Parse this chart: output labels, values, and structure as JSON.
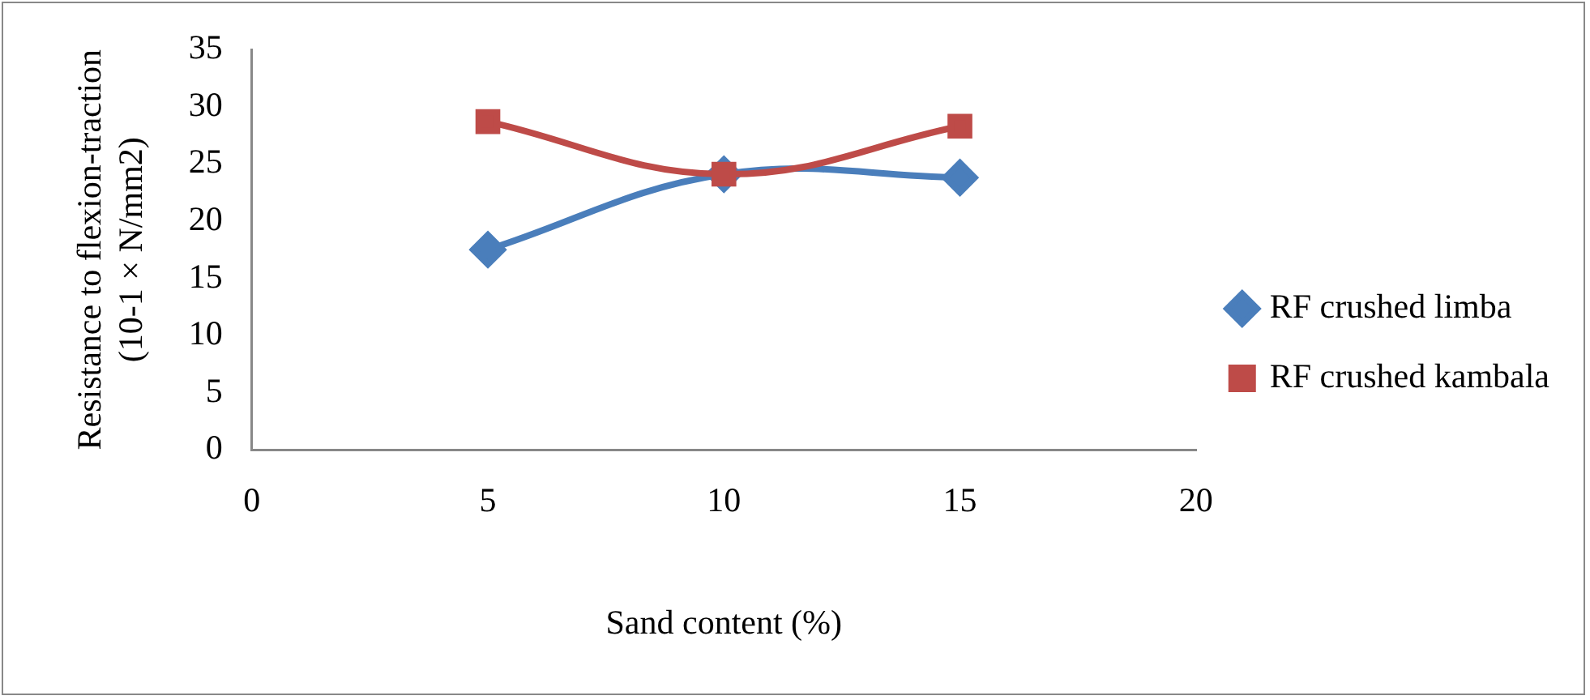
{
  "chart_data": {
    "type": "line",
    "xlabel": "Sand content (%)",
    "ylabel": "Resistance to flexion-traction (10-1 × N/mm2)",
    "x": [
      5,
      10,
      15
    ],
    "series": [
      {
        "name": "RF crushed limba",
        "color": "#4a7ebb",
        "marker": "diamond",
        "values": [
          17.5,
          24.1,
          23.8
        ]
      },
      {
        "name": "RF crushed kambala",
        "color": "#be4b48",
        "marker": "square",
        "values": [
          28.7,
          24.1,
          28.3
        ]
      }
    ],
    "xlim": [
      0,
      20
    ],
    "xticks": [
      0,
      5,
      10,
      15,
      20
    ],
    "ylim": [
      0,
      35
    ],
    "yticks": [
      0,
      5,
      10,
      15,
      20,
      25,
      30,
      35
    ],
    "grid": false,
    "legend": "right"
  }
}
